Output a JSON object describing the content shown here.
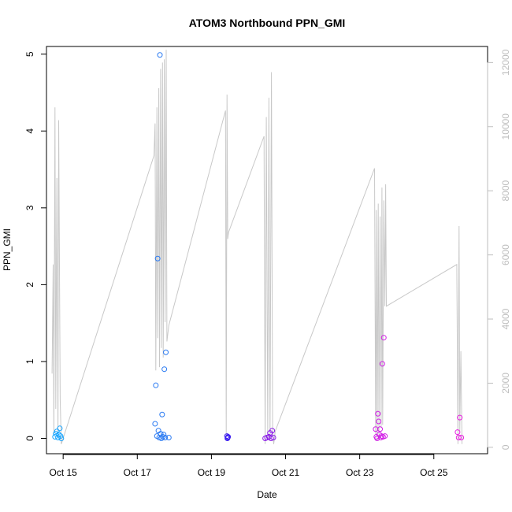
{
  "chart_data": {
    "type": "scatter",
    "title": "ATOM3 Northbound PPN_GMI",
    "xlabel": "Date",
    "ylabel": "PPN_GMI",
    "x_ticks": [
      "Oct 15",
      "Oct 17",
      "Oct 19",
      "Oct 21",
      "Oct 23",
      "Oct 25"
    ],
    "y_ticks": [
      "0",
      "1",
      "2",
      "3",
      "4",
      "5"
    ],
    "y2_ticks": [
      "0",
      "2000",
      "4000",
      "6000",
      "8000",
      "10000",
      "12000"
    ],
    "xlim": [
      14.55,
      26.45
    ],
    "ylim": [
      -0.2,
      5.1
    ],
    "y2lim": [
      -200,
      12500
    ],
    "grid": false,
    "series": [
      {
        "type": "scatter",
        "color_scale": [
          "#00bfff",
          "#0000ff",
          "#ff00ff"
        ],
        "points": [
          {
            "x": 14.78,
            "y": 0.02,
            "c": "#1aa6ff"
          },
          {
            "x": 14.8,
            "y": 0.06,
            "c": "#1aa6ff"
          },
          {
            "x": 14.83,
            "y": 0.09,
            "c": "#1aa6ff"
          },
          {
            "x": 14.86,
            "y": 0.01,
            "c": "#1aa6ff"
          },
          {
            "x": 14.88,
            "y": 0.05,
            "c": "#1aa6ff"
          },
          {
            "x": 14.91,
            "y": 0.13,
            "c": "#1aa6ff"
          },
          {
            "x": 14.93,
            "y": 0.03,
            "c": "#1aa6ff"
          },
          {
            "x": 14.95,
            "y": 0.0,
            "c": "#1aa6ff"
          },
          {
            "x": 17.48,
            "y": 0.19,
            "c": "#2a7af2"
          },
          {
            "x": 17.5,
            "y": 0.69,
            "c": "#2a7af2"
          },
          {
            "x": 17.53,
            "y": 0.03,
            "c": "#2a7af2"
          },
          {
            "x": 17.55,
            "y": 2.34,
            "c": "#2a7af2"
          },
          {
            "x": 17.57,
            "y": 0.1,
            "c": "#2a7af2"
          },
          {
            "x": 17.59,
            "y": 0.01,
            "c": "#2a7af2"
          },
          {
            "x": 17.61,
            "y": 4.99,
            "c": "#2a7af2"
          },
          {
            "x": 17.63,
            "y": 0.06,
            "c": "#2a7af2"
          },
          {
            "x": 17.65,
            "y": 0.0,
            "c": "#2a7af2"
          },
          {
            "x": 17.67,
            "y": 0.31,
            "c": "#2a7af2"
          },
          {
            "x": 17.69,
            "y": 0.02,
            "c": "#2a7af2"
          },
          {
            "x": 17.71,
            "y": 0.05,
            "c": "#2a7af2"
          },
          {
            "x": 17.73,
            "y": 0.9,
            "c": "#2a7af2"
          },
          {
            "x": 17.75,
            "y": 0.01,
            "c": "#2a7af2"
          },
          {
            "x": 17.77,
            "y": 1.12,
            "c": "#2a7af2"
          },
          {
            "x": 17.85,
            "y": 0.01,
            "c": "#2a7af2"
          },
          {
            "x": 19.42,
            "y": 0.03,
            "c": "#3c1ef0"
          },
          {
            "x": 19.43,
            "y": 0.0,
            "c": "#3c1ef0"
          },
          {
            "x": 19.44,
            "y": 0.01,
            "c": "#3c1ef0"
          },
          {
            "x": 19.45,
            "y": 0.02,
            "c": "#3c1ef0"
          },
          {
            "x": 20.45,
            "y": 0.0,
            "c": "#8a1ae8"
          },
          {
            "x": 20.5,
            "y": 0.01,
            "c": "#8a1ae8"
          },
          {
            "x": 20.55,
            "y": 0.02,
            "c": "#8a1ae8"
          },
          {
            "x": 20.58,
            "y": 0.07,
            "c": "#8a1ae8"
          },
          {
            "x": 20.61,
            "y": 0.0,
            "c": "#8a1ae8"
          },
          {
            "x": 20.64,
            "y": 0.1,
            "c": "#8a1ae8"
          },
          {
            "x": 20.67,
            "y": 0.01,
            "c": "#8a1ae8"
          },
          {
            "x": 23.43,
            "y": 0.12,
            "c": "#d21ee6"
          },
          {
            "x": 23.45,
            "y": 0.02,
            "c": "#d21ee6"
          },
          {
            "x": 23.47,
            "y": 0.0,
            "c": "#d21ee6"
          },
          {
            "x": 23.49,
            "y": 0.32,
            "c": "#d21ee6"
          },
          {
            "x": 23.51,
            "y": 0.22,
            "c": "#d21ee6"
          },
          {
            "x": 23.53,
            "y": 0.05,
            "c": "#d21ee6"
          },
          {
            "x": 23.55,
            "y": 0.12,
            "c": "#d21ee6"
          },
          {
            "x": 23.57,
            "y": 0.01,
            "c": "#d21ee6"
          },
          {
            "x": 23.59,
            "y": 0.03,
            "c": "#d21ee6"
          },
          {
            "x": 23.61,
            "y": 0.97,
            "c": "#d21ee6"
          },
          {
            "x": 23.63,
            "y": 0.02,
            "c": "#d21ee6"
          },
          {
            "x": 23.65,
            "y": 1.31,
            "c": "#d21ee6"
          },
          {
            "x": 23.68,
            "y": 0.03,
            "c": "#d21ee6"
          },
          {
            "x": 25.64,
            "y": 0.08,
            "c": "#e81ee0"
          },
          {
            "x": 25.67,
            "y": 0.01,
            "c": "#e81ee0"
          },
          {
            "x": 25.7,
            "y": 0.27,
            "c": "#e81ee0"
          },
          {
            "x": 25.74,
            "y": 0.01,
            "c": "#e81ee0"
          }
        ]
      },
      {
        "type": "line",
        "axis": "right",
        "color": "#c8c8c8",
        "x": [
          14.7,
          14.73,
          14.75,
          14.78,
          14.8,
          14.83,
          14.86,
          14.88,
          14.92,
          14.95,
          17.45,
          17.48,
          17.5,
          17.53,
          17.55,
          17.58,
          17.6,
          17.63,
          17.65,
          17.68,
          17.7,
          17.73,
          17.75,
          17.78,
          17.8,
          17.85,
          19.38,
          19.4,
          19.42,
          19.44,
          19.46,
          20.42,
          20.45,
          20.48,
          20.52,
          20.55,
          20.58,
          20.62,
          20.65,
          20.68,
          20.72,
          23.4,
          23.43,
          23.45,
          23.47,
          23.5,
          23.52,
          23.55,
          23.58,
          23.6,
          23.62,
          23.65,
          23.68,
          23.7,
          23.72,
          25.62,
          25.65,
          25.68,
          25.7,
          25.73,
          25.76
        ],
        "y": [
          2300,
          5700,
          400,
          10600,
          1200,
          8400,
          300,
          10200,
          1500,
          100,
          9100,
          10100,
          2400,
          10600,
          3400,
          11200,
          2500,
          11800,
          3100,
          12000,
          2800,
          12100,
          3900,
          12400,
          3300,
          3800,
          10500,
          300,
          11000,
          6500,
          6700,
          9700,
          100,
          10300,
          300,
          10900,
          200,
          11700,
          500,
          100,
          500,
          8700,
          400,
          7400,
          200,
          7600,
          400,
          7200,
          600,
          8100,
          700,
          7700,
          4400,
          8200,
          4400,
          5700,
          100,
          6900,
          500,
          3000,
          100
        ]
      }
    ]
  }
}
